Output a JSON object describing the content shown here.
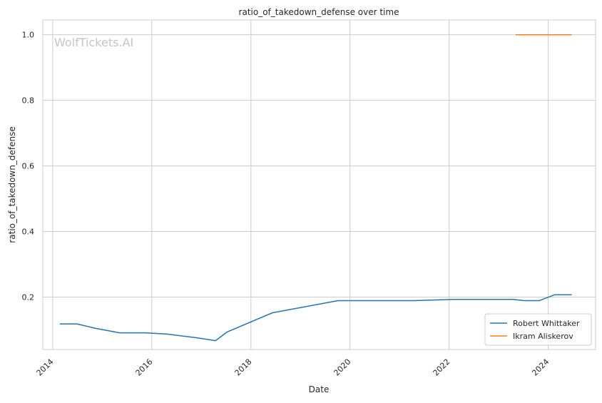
{
  "chart_data": {
    "type": "line",
    "title": "ratio_of_takedown_defense over time",
    "xlabel": "Date",
    "ylabel": "ratio_of_takedown_defense",
    "watermark": "WolfTickets.AI",
    "xlim": [
      "2013-10-20",
      "2024-12-15"
    ],
    "ylim": [
      0.04,
      1.045
    ],
    "x_ticks": [
      "2014",
      "2016",
      "2018",
      "2020",
      "2022",
      "2024"
    ],
    "y_ticks": [
      "0.2",
      "0.4",
      "0.6",
      "0.8",
      "1.0"
    ],
    "grid": true,
    "legend_position": "lower-right",
    "series": [
      {
        "name": "Robert Whittaker",
        "color": "#1f77b4",
        "points": [
          {
            "x": "2014-02-22",
            "y": 0.118
          },
          {
            "x": "2014-06-28",
            "y": 0.118
          },
          {
            "x": "2014-11-08",
            "y": 0.105
          },
          {
            "x": "2015-05-09",
            "y": 0.091
          },
          {
            "x": "2015-11-14",
            "y": 0.091
          },
          {
            "x": "2016-04-23",
            "y": 0.087
          },
          {
            "x": "2016-11-26",
            "y": 0.076
          },
          {
            "x": "2017-04-15",
            "y": 0.067
          },
          {
            "x": "2017-07-08",
            "y": 0.093
          },
          {
            "x": "2018-06-09",
            "y": 0.152
          },
          {
            "x": "2019-10-05",
            "y": 0.189
          },
          {
            "x": "2021-04-17",
            "y": 0.189
          },
          {
            "x": "2022-02-12",
            "y": 0.193
          },
          {
            "x": "2023-04-15",
            "y": 0.193
          },
          {
            "x": "2023-07-08",
            "y": 0.189
          },
          {
            "x": "2023-10-28",
            "y": 0.189
          },
          {
            "x": "2024-02-17",
            "y": 0.207
          },
          {
            "x": "2024-06-22",
            "y": 0.207
          }
        ]
      },
      {
        "name": "Ikram Aliskerov",
        "color": "#ff7f0e",
        "points": [
          {
            "x": "2023-05-06",
            "y": 1.0
          },
          {
            "x": "2023-08-19",
            "y": 1.0
          },
          {
            "x": "2024-06-22",
            "y": 1.0
          }
        ]
      }
    ]
  }
}
